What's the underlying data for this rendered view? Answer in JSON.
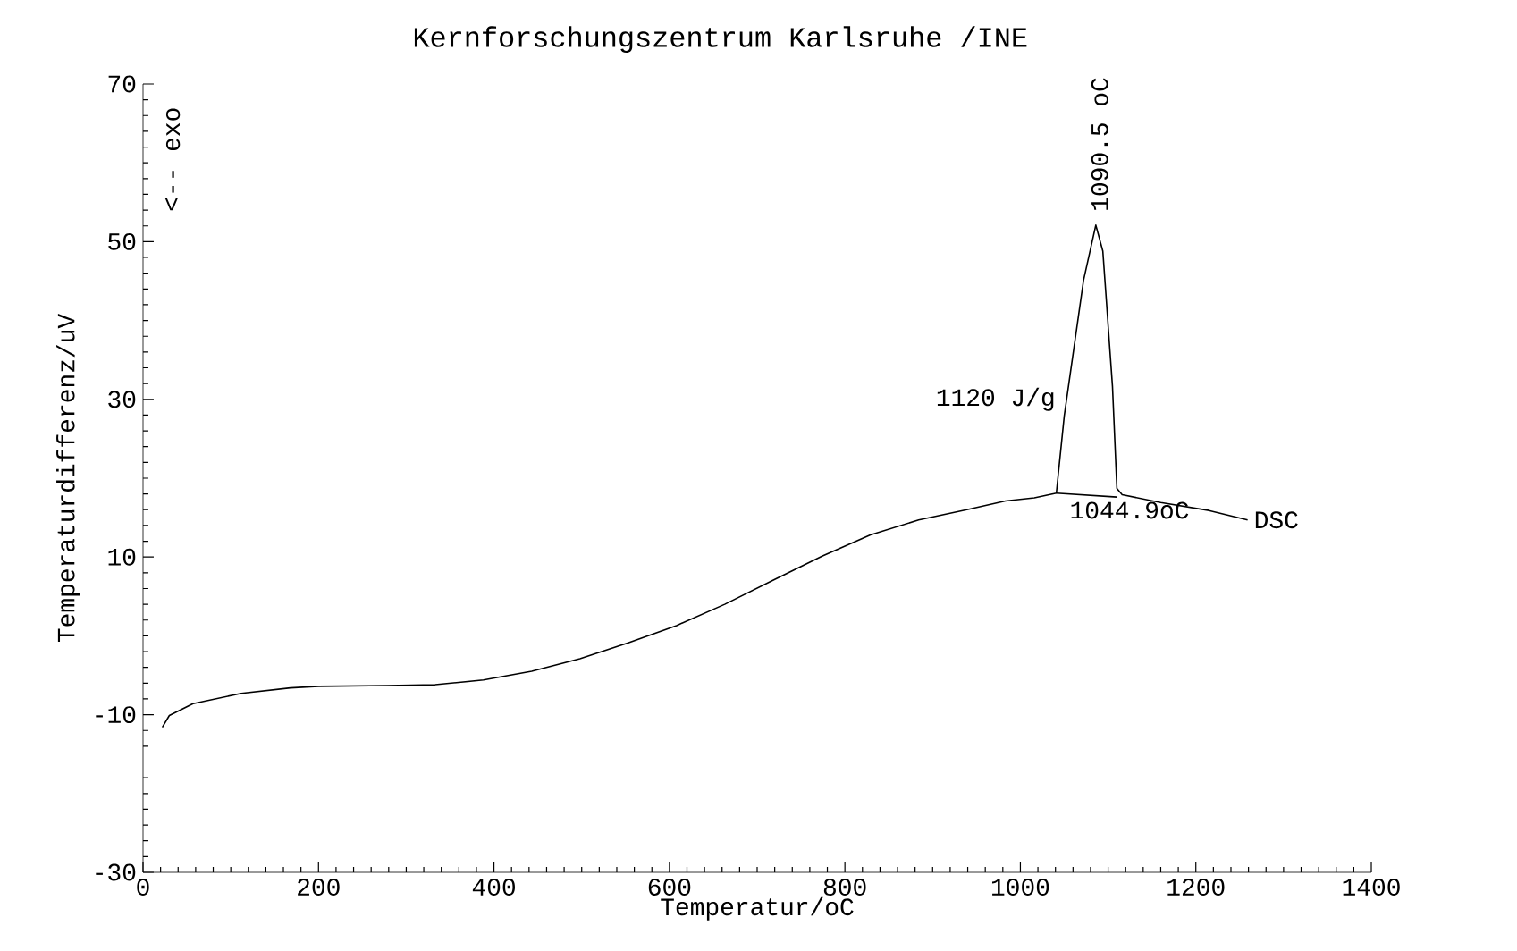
{
  "chart_data": {
    "type": "line",
    "title": "Kernforschungszentrum Karlsruhe /INE",
    "xlabel": "Temperatur/oC",
    "ylabel": "Temperaturdifferenz/uV",
    "xlim": [
      0,
      1400
    ],
    "ylim": [
      -30,
      70
    ],
    "xticks": [
      0,
      200,
      400,
      600,
      800,
      1000,
      1200,
      1400
    ],
    "yticks": [
      -30,
      -10,
      10,
      30,
      50,
      70
    ],
    "series": [
      {
        "name": "DSC",
        "color": "#000000",
        "x": [
          22,
          30,
          57,
          112,
          168,
          200,
          278,
          333,
          388,
          443,
          498,
          553,
          608,
          663,
          719,
          774,
          829,
          884,
          939,
          983,
          1016,
          1041,
          1050,
          1072,
          1086,
          1094,
          1105,
          1110,
          1116,
          1160,
          1215,
          1259
        ],
        "values": [
          -11.6,
          -10.1,
          -8.6,
          -7.3,
          -6.6,
          -6.4,
          -6.3,
          -6.2,
          -5.6,
          -4.5,
          -2.9,
          -0.9,
          1.3,
          4.0,
          7.1,
          10.1,
          12.8,
          14.7,
          16.0,
          17.1,
          17.5,
          18.1,
          27.9,
          45.1,
          52.1,
          48.8,
          31.6,
          18.7,
          17.9,
          16.9,
          15.9,
          14.7
        ]
      },
      {
        "type": "line",
        "color": "#000000",
        "x": [
          1041,
          1110
        ],
        "values": [
          18.1,
          17.6
        ]
      }
    ],
    "annotations": [
      {
        "text": "1090.5 oC",
        "x": 1090.5,
        "y": 52.1
      },
      "1120 J/g",
      {
        "text": "1044.9oC",
        "x": 1044.9,
        "y": 17.8
      },
      "<-- exo"
    ]
  }
}
